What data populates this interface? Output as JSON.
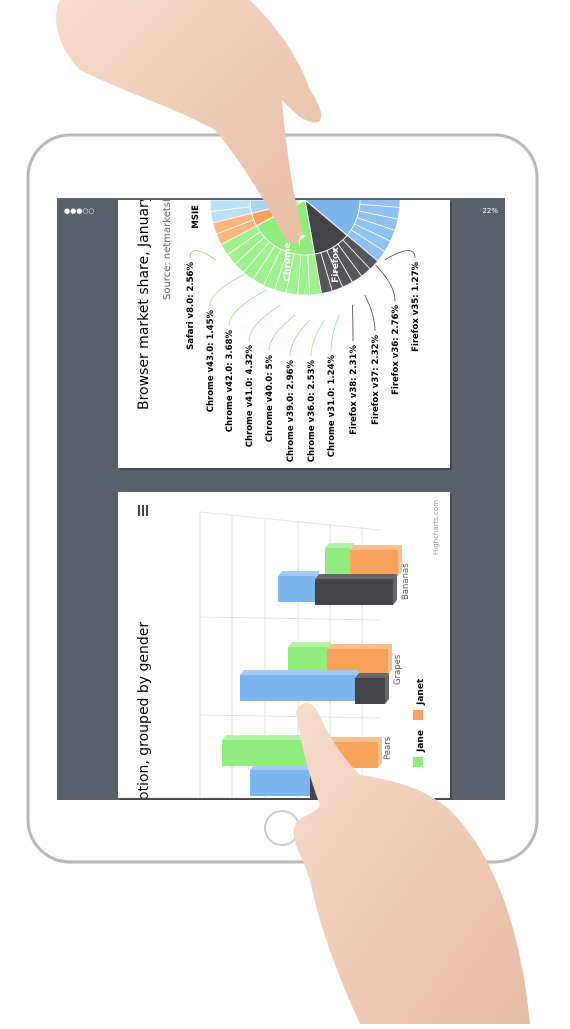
{
  "status": {
    "signal": "●●●○○",
    "battery": "22%"
  },
  "pie_card": {
    "title": "Browser market share, January,",
    "source": "Source: netmarketshar",
    "labels": [
      "MSIE",
      "Safari v8.0: 2.56%",
      "Chrome v43.0: 1.45%",
      "Chrome v42.0: 3.68%",
      "Chrome v41.0: 4.32%",
      "Chrome v40.0: 5%",
      "Chrome v39.0: 2.96%",
      "Chrome v36.0: 2.53%",
      "Chrome v31.0: 1.24%",
      "Firefox v38: 2.31%",
      "Firefox v37: 2.32%",
      "Firefox v36: 2.76%",
      "Firefox v35: 1.27%"
    ],
    "inner_labels": [
      "Chrome",
      "Firefox"
    ]
  },
  "bar_card": {
    "title": "otion, grouped by gender",
    "legend": [
      "Jane",
      "Janet"
    ],
    "categories": [
      "Pears",
      "Grapes",
      "Bananas"
    ],
    "credit": "Highcharts.com"
  }
}
